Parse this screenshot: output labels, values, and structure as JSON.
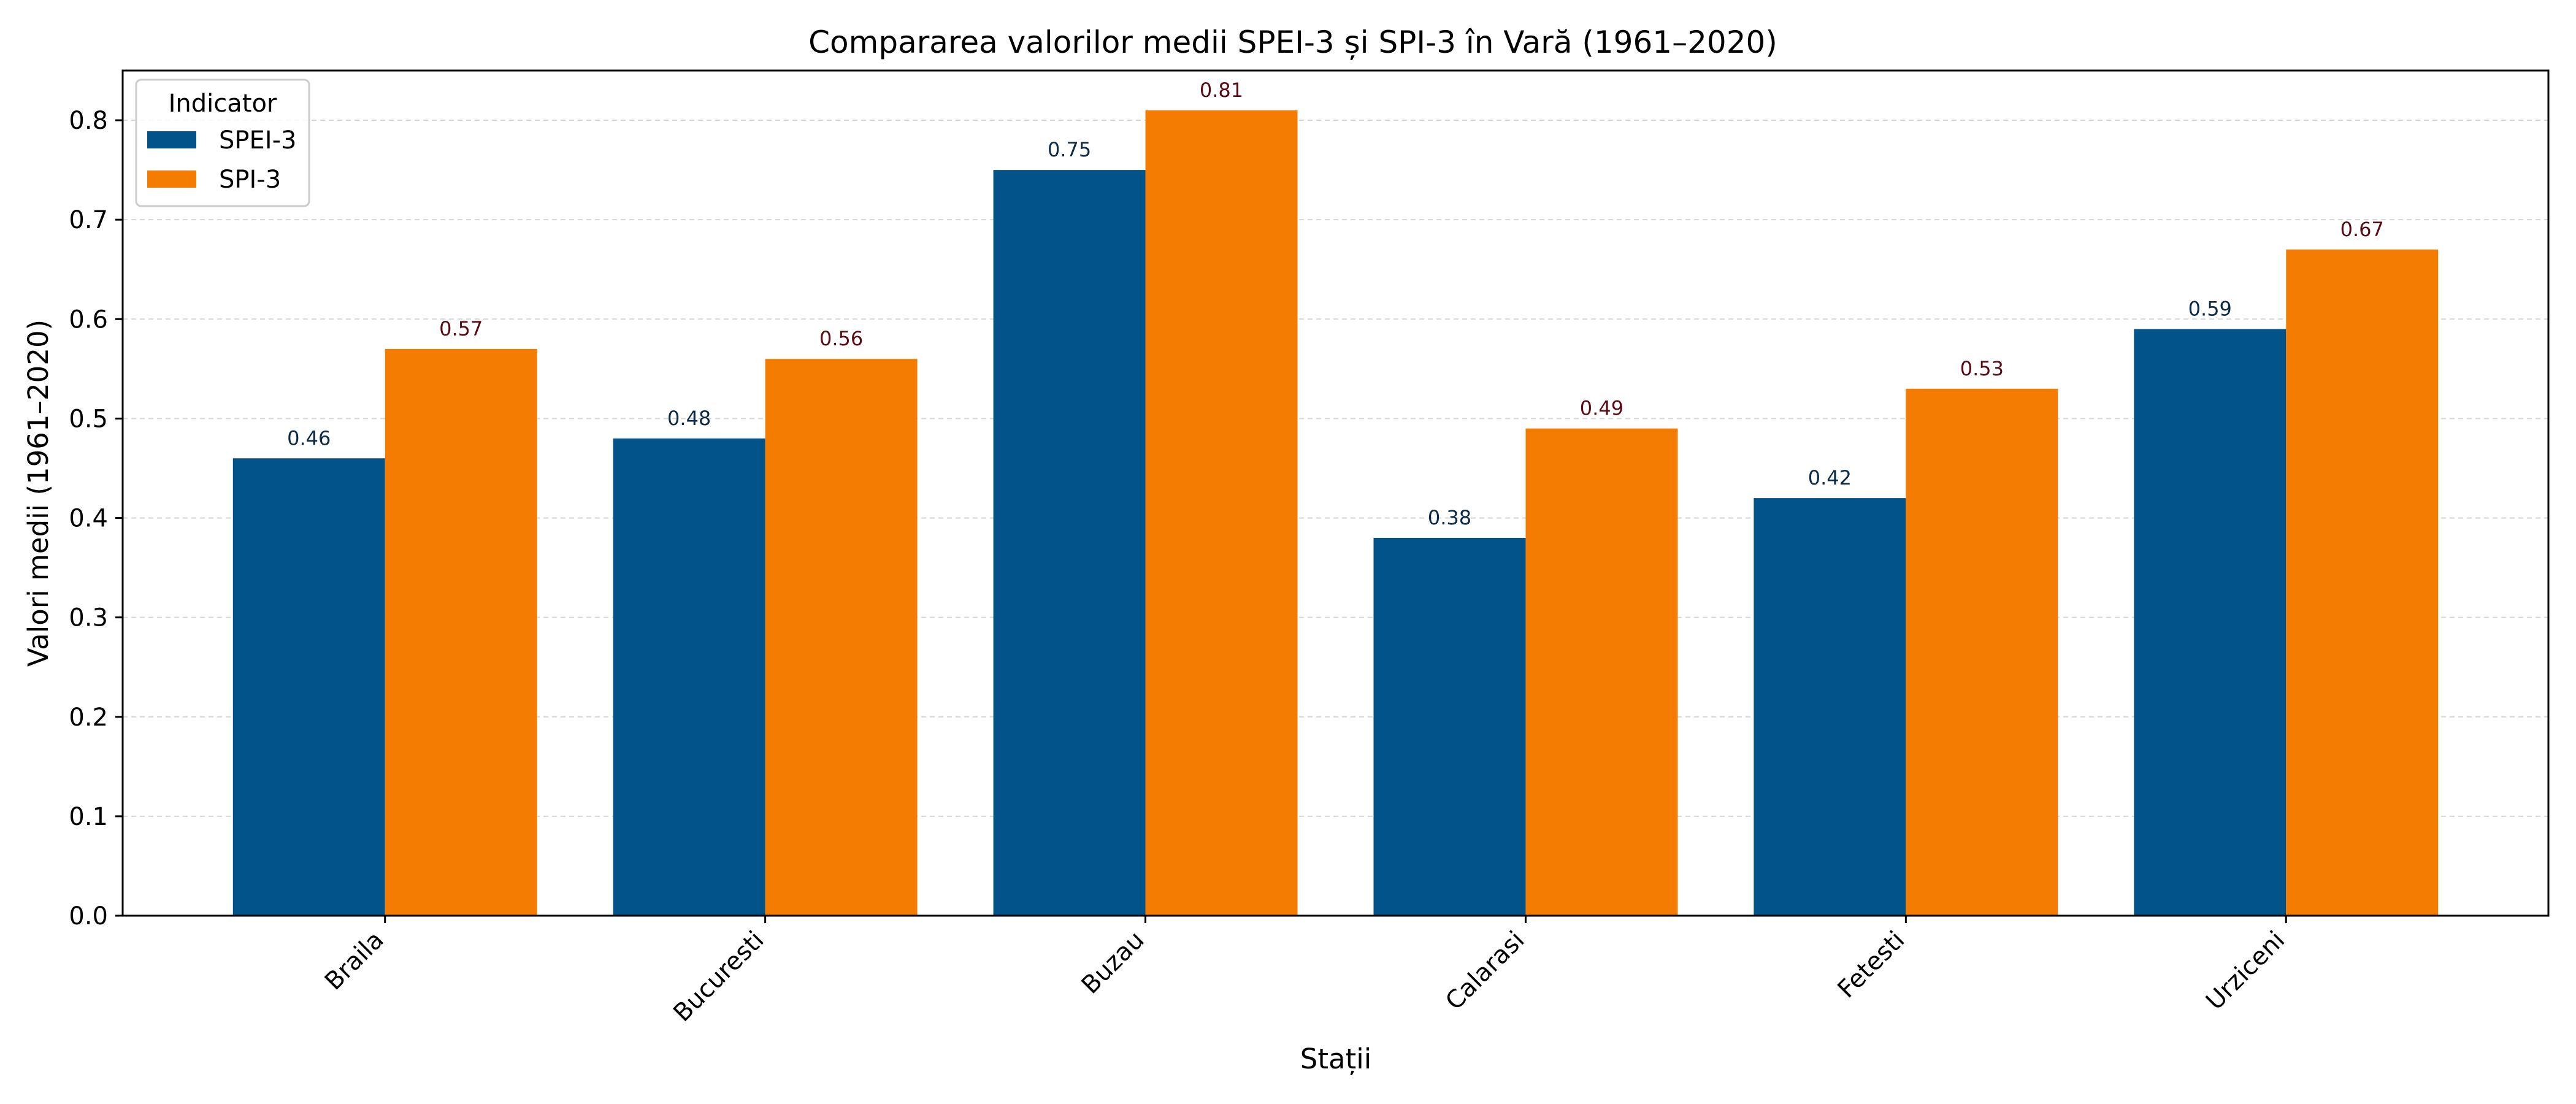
{
  "chart_data": {
    "type": "bar",
    "title": "Compararea valorilor medii SPEI-3 și SPI-3 în Vară (1961–2020)",
    "xlabel": "Stații",
    "ylabel": "Valori medii (1961–2020)",
    "categories": [
      "Braila",
      "Bucuresti",
      "Buzau",
      "Calarasi",
      "Fetesti",
      "Urziceni"
    ],
    "series": [
      {
        "name": "SPEI-3",
        "color": "#02538a",
        "label_color": "#0b2a45",
        "values": [
          0.46,
          0.48,
          0.75,
          0.38,
          0.42,
          0.59
        ]
      },
      {
        "name": "SPI-3",
        "color": "#f57c02",
        "label_color": "#5a0a12",
        "values": [
          0.57,
          0.56,
          0.81,
          0.49,
          0.53,
          0.67
        ]
      }
    ],
    "ylim": [
      0,
      0.85
    ],
    "yticks": [
      "0.0",
      "0.1",
      "0.2",
      "0.3",
      "0.4",
      "0.5",
      "0.6",
      "0.7",
      "0.8"
    ],
    "grid": "horizontal-dashed",
    "legend": {
      "title": "Indicator",
      "placement": "top-left"
    }
  }
}
